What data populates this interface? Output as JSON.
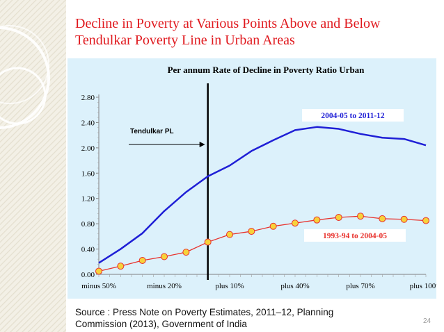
{
  "slide": {
    "title_line1": "Decline in Poverty at Various Points Above and Below",
    "title_line2": "Tendulkar Poverty Line in Urban Areas",
    "source_line1": "Source : Press Note on Poverty Estimates, 2011–12, Planning",
    "source_line2": "Commission (2013), Government of India",
    "page_number": "24"
  },
  "chart_data": {
    "type": "line",
    "title": "Per annum Rate of Decline in Poverty Ratio Urban",
    "xlabel": "",
    "ylabel": "",
    "ylim": [
      0,
      2.8
    ],
    "y_ticks": [
      "0.00",
      "0.40",
      "0.80",
      "1.20",
      "1.60",
      "2.00",
      "2.40",
      "2.80"
    ],
    "x_tick_labels": [
      "minus 50%",
      "minus 20%",
      "plus 10%",
      "plus 40%",
      "plus 70%",
      "plus 100%"
    ],
    "x_range": [
      -50,
      100
    ],
    "grid": false,
    "reference_line": {
      "x": 0,
      "label": "Tendulkar PL"
    },
    "series": [
      {
        "name": "2004-05 to 2011-12",
        "color": "#1f1fd6",
        "marker": "none",
        "x": [
          -50,
          -40,
          -30,
          -20,
          -10,
          0,
          10,
          20,
          30,
          40,
          50,
          60,
          70,
          80,
          90,
          100
        ],
        "y": [
          0.18,
          0.4,
          0.65,
          1.0,
          1.3,
          1.55,
          1.72,
          1.95,
          2.12,
          2.28,
          2.33,
          2.3,
          2.22,
          2.16,
          2.14,
          2.04
        ]
      },
      {
        "name": "1993-94 to 2004-05",
        "color": "#e8312c",
        "marker": "circle",
        "marker_fill": "#f7d23a",
        "x": [
          -50,
          -40,
          -30,
          -20,
          -10,
          0,
          10,
          20,
          30,
          40,
          50,
          60,
          70,
          80,
          90,
          100
        ],
        "y": [
          0.05,
          0.13,
          0.22,
          0.28,
          0.35,
          0.51,
          0.63,
          0.68,
          0.76,
          0.81,
          0.86,
          0.9,
          0.92,
          0.88,
          0.87,
          0.85
        ]
      }
    ]
  }
}
